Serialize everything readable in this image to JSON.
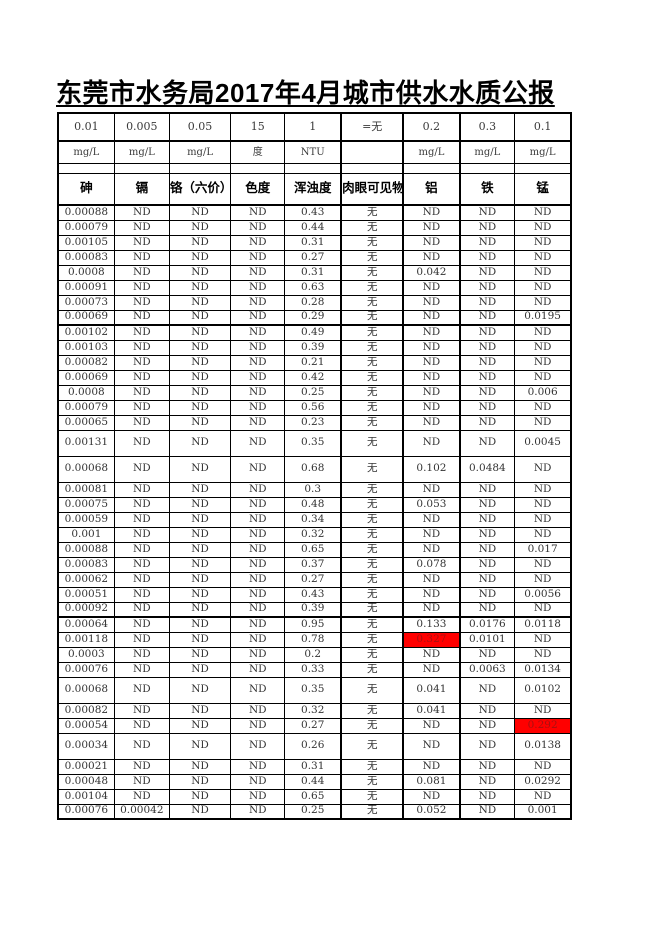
{
  "title": "东莞市水务局2017年4月城市供水水质公报",
  "table": {
    "limits_row": [
      "0.01",
      "0.005",
      "0.05",
      "15",
      "1",
      "=无",
      "0.2",
      "0.3",
      "0.1"
    ],
    "units_row": [
      "mg/L",
      "mg/L",
      "mg/L",
      "度",
      "NTU",
      "",
      "mg/L",
      "mg/L",
      "mg/L"
    ],
    "header_row": [
      "砷",
      "镉",
      "铬（六价）",
      "色度",
      "浑浊度",
      "肉眼可见物",
      "铝",
      "铁",
      "锰"
    ],
    "rows": [
      [
        "0.00088",
        "ND",
        "ND",
        "ND",
        "0.43",
        "无",
        "ND",
        "ND",
        "ND"
      ],
      [
        "0.00079",
        "ND",
        "ND",
        "ND",
        "0.44",
        "无",
        "ND",
        "ND",
        "ND"
      ],
      [
        "0.00105",
        "ND",
        "ND",
        "ND",
        "0.31",
        "无",
        "ND",
        "ND",
        "ND"
      ],
      [
        "0.00083",
        "ND",
        "ND",
        "ND",
        "0.27",
        "无",
        "ND",
        "ND",
        "ND"
      ],
      [
        "0.0008",
        "ND",
        "ND",
        "ND",
        "0.31",
        "无",
        "0.042",
        "ND",
        "ND"
      ],
      [
        "0.00091",
        "ND",
        "ND",
        "ND",
        "0.63",
        "无",
        "ND",
        "ND",
        "ND"
      ],
      [
        "0.00073",
        "ND",
        "ND",
        "ND",
        "0.28",
        "无",
        "ND",
        "ND",
        "ND"
      ],
      [
        "0.00069",
        "ND",
        "ND",
        "ND",
        "0.29",
        "无",
        "ND",
        "ND",
        "0.0195"
      ],
      [
        "0.00102",
        "ND",
        "ND",
        "ND",
        "0.49",
        "无",
        "ND",
        "ND",
        "ND"
      ],
      [
        "0.00103",
        "ND",
        "ND",
        "ND",
        "0.39",
        "无",
        "ND",
        "ND",
        "ND"
      ],
      [
        "0.00082",
        "ND",
        "ND",
        "ND",
        "0.21",
        "无",
        "ND",
        "ND",
        "ND"
      ],
      [
        "0.00069",
        "ND",
        "ND",
        "ND",
        "0.42",
        "无",
        "ND",
        "ND",
        "ND"
      ],
      [
        "0.0008",
        "ND",
        "ND",
        "ND",
        "0.25",
        "无",
        "ND",
        "ND",
        "0.006"
      ],
      [
        "0.00079",
        "ND",
        "ND",
        "ND",
        "0.56",
        "无",
        "ND",
        "ND",
        "ND"
      ],
      [
        "0.00065",
        "ND",
        "ND",
        "ND",
        "0.23",
        "无",
        "ND",
        "ND",
        "ND"
      ],
      [
        "0.00131",
        "ND",
        "ND",
        "ND",
        "0.35",
        "无",
        "ND",
        "ND",
        "0.0045"
      ],
      [
        "0.00068",
        "ND",
        "ND",
        "ND",
        "0.68",
        "无",
        "0.102",
        "0.0484",
        "ND"
      ],
      [
        "0.00081",
        "ND",
        "ND",
        "ND",
        "0.3",
        "无",
        "ND",
        "ND",
        "ND"
      ],
      [
        "0.00075",
        "ND",
        "ND",
        "ND",
        "0.48",
        "无",
        "0.053",
        "ND",
        "ND"
      ],
      [
        "0.00059",
        "ND",
        "ND",
        "ND",
        "0.34",
        "无",
        "ND",
        "ND",
        "ND"
      ],
      [
        "0.001",
        "ND",
        "ND",
        "ND",
        "0.32",
        "无",
        "ND",
        "ND",
        "ND"
      ],
      [
        "0.00088",
        "ND",
        "ND",
        "ND",
        "0.65",
        "无",
        "ND",
        "ND",
        "0.017"
      ],
      [
        "0.00083",
        "ND",
        "ND",
        "ND",
        "0.37",
        "无",
        "0.078",
        "ND",
        "ND"
      ],
      [
        "0.00062",
        "ND",
        "ND",
        "ND",
        "0.27",
        "无",
        "ND",
        "ND",
        "ND"
      ],
      [
        "0.00051",
        "ND",
        "ND",
        "ND",
        "0.43",
        "无",
        "ND",
        "ND",
        "0.0056"
      ],
      [
        "0.00092",
        "ND",
        "ND",
        "ND",
        "0.39",
        "无",
        "ND",
        "ND",
        "ND"
      ],
      [
        "0.00064",
        "ND",
        "ND",
        "ND",
        "0.95",
        "无",
        "0.133",
        "0.0176",
        "0.0118"
      ],
      [
        "0.00118",
        "ND",
        "ND",
        "ND",
        "0.78",
        "无",
        "0.327",
        "0.0101",
        "ND"
      ],
      [
        "0.0003",
        "ND",
        "ND",
        "ND",
        "0.2",
        "无",
        "ND",
        "ND",
        "ND"
      ],
      [
        "0.00076",
        "ND",
        "ND",
        "ND",
        "0.33",
        "无",
        "ND",
        "0.0063",
        "0.0134"
      ],
      [
        "0.00068",
        "ND",
        "ND",
        "ND",
        "0.35",
        "无",
        "0.041",
        "ND",
        "0.0102"
      ],
      [
        "0.00082",
        "ND",
        "ND",
        "ND",
        "0.32",
        "无",
        "0.041",
        "ND",
        "ND"
      ],
      [
        "0.00054",
        "ND",
        "ND",
        "ND",
        "0.27",
        "无",
        "ND",
        "ND",
        "0.292"
      ],
      [
        "0.00034",
        "ND",
        "ND",
        "ND",
        "0.26",
        "无",
        "ND",
        "ND",
        "0.0138"
      ],
      [
        "0.00021",
        "ND",
        "ND",
        "ND",
        "0.31",
        "无",
        "ND",
        "ND",
        "ND"
      ],
      [
        "0.00048",
        "ND",
        "ND",
        "ND",
        "0.44",
        "无",
        "0.081",
        "ND",
        "0.0292"
      ],
      [
        "0.00104",
        "ND",
        "ND",
        "ND",
        "0.65",
        "无",
        "ND",
        "ND",
        "ND"
      ],
      [
        "0.00076",
        "0.00042",
        "ND",
        "ND",
        "0.25",
        "无",
        "0.052",
        "ND",
        "0.001"
      ]
    ],
    "tall_row_indices": [
      15,
      16,
      30,
      33
    ],
    "thick_border_below_rows": [
      7,
      25
    ],
    "highlighted_cells": [
      {
        "row": 27,
        "col": 6,
        "value": "0.327"
      },
      {
        "row": 32,
        "col": 8,
        "value": "0.292"
      }
    ],
    "highlight_bg_color": "#ff0000",
    "highlight_text_color": "#a81010"
  }
}
